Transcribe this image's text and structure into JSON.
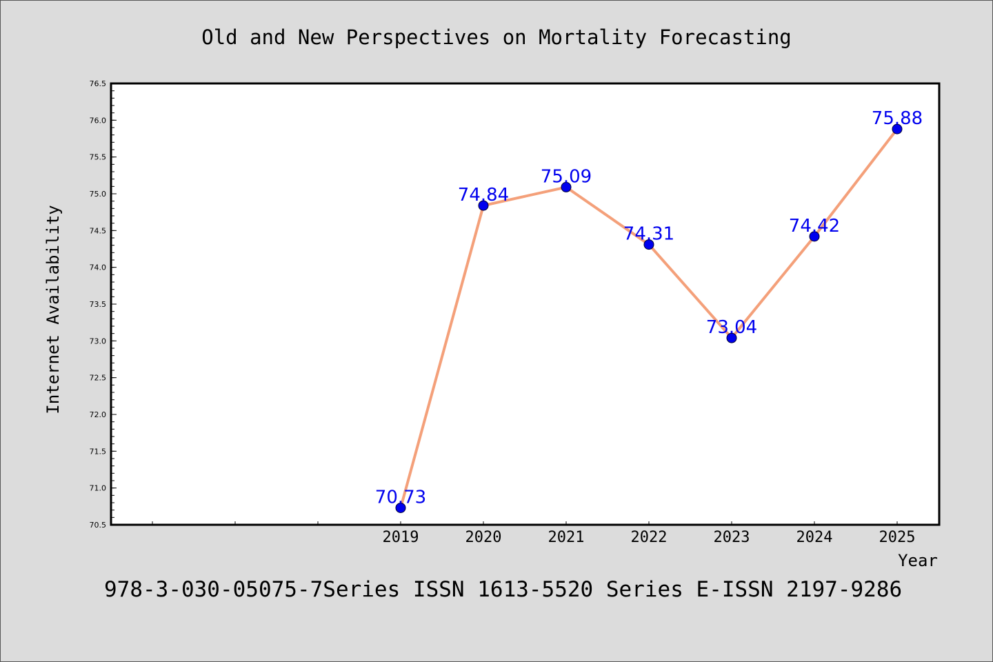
{
  "chart_data": {
    "type": "line",
    "title": "Old and New Perspectives on Mortality Forecasting",
    "xlabel": "Year",
    "ylabel": "Internet Availability",
    "categories": [
      "2019",
      "2020",
      "2021",
      "2022",
      "2023",
      "2024",
      "2025"
    ],
    "series": [
      {
        "values": [
          70.73,
          74.84,
          75.09,
          74.31,
          73.04,
          74.42,
          75.88
        ],
        "data_labels": [
          "70.73",
          "74.84",
          "75.09",
          "74.31",
          "73.04",
          "74.42",
          "75.88"
        ],
        "line_color": "#f4a07a",
        "marker_color": "#0000ee"
      }
    ],
    "label_color": "#0000ee",
    "ylim": [
      70.5,
      76.5
    ],
    "yticks": [
      "70.5",
      "71.0",
      "71.5",
      "72.0",
      "72.5",
      "73.0",
      "73.5",
      "74.0",
      "74.5",
      "75.0",
      "75.5",
      "76.0",
      "76.5"
    ],
    "grid": false,
    "legend": "none"
  },
  "footer": {
    "text": "978-3-030-05075-7Series ISSN 1613-5520 Series E-ISSN 2197-9286"
  }
}
